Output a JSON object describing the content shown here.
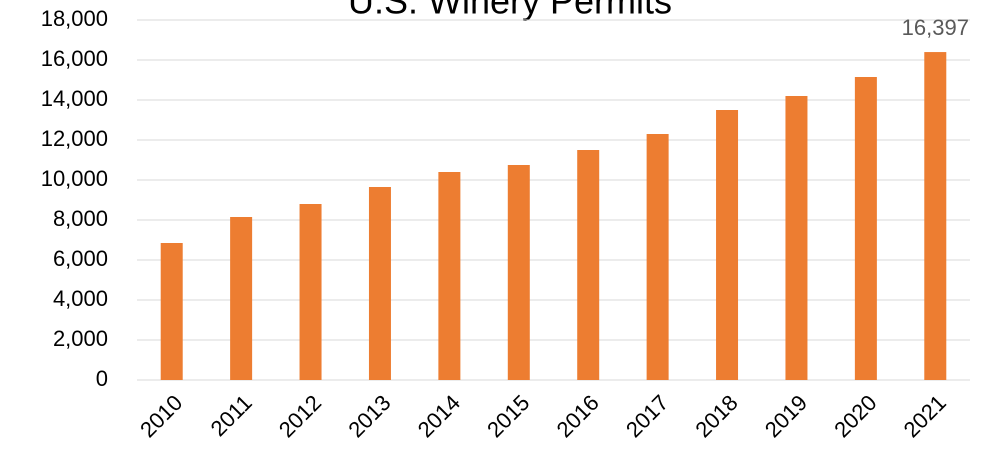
{
  "chart_data": {
    "type": "bar",
    "title": "U.S. Winery Permits",
    "categories": [
      "2010",
      "2011",
      "2012",
      "2013",
      "2014",
      "2015",
      "2016",
      "2017",
      "2018",
      "2019",
      "2020",
      "2021"
    ],
    "values": [
      6850,
      8150,
      8800,
      9650,
      10400,
      10750,
      11500,
      12300,
      13500,
      14200,
      15150,
      16397
    ],
    "value_labels": [
      null,
      null,
      null,
      null,
      null,
      null,
      null,
      null,
      null,
      null,
      null,
      "16,397"
    ],
    "color": "#ed7d31",
    "ylim": [
      0,
      18000
    ],
    "yticks": [
      0,
      {
        "value": 2000,
        "label": "2,000"
      },
      {
        "value": 4000,
        "label": "4,000"
      },
      {
        "value": 6000,
        "label": "6,000"
      },
      {
        "value": 8000,
        "label": "8,000"
      },
      {
        "value": 10000,
        "label": "10,000"
      },
      {
        "value": 12000,
        "label": "12,000"
      },
      {
        "value": 14000,
        "label": "14,000"
      },
      {
        "value": 16000,
        "label": "16,000"
      },
      {
        "value": 18000,
        "label": "18,000"
      }
    ],
    "grid": true
  }
}
